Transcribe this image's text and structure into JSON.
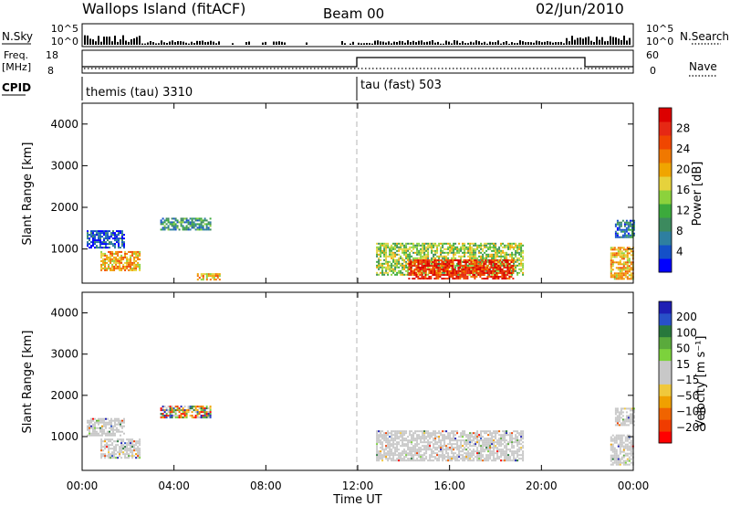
{
  "header": {
    "station": "Wallops Island (fitACF)",
    "beam": "Beam 00",
    "date": "02/Jun/2010"
  },
  "top_panels": {
    "nsky_label": "N.Sky",
    "nsky_ticks": [
      "10^5",
      "10^0"
    ],
    "nsearch_label": "N.Search",
    "nsearch_ticks": [
      "10^5",
      "10^0"
    ],
    "freq_label_line1": "Freq.",
    "freq_label_line2": "[MHz]",
    "freq_ticks": [
      "18",
      "8"
    ],
    "nave_label": "Nave",
    "nave_ticks": [
      "60",
      "0"
    ],
    "cpid_label": "CPID",
    "cpid_segments": [
      {
        "text": "themis (tau) 3310",
        "start_hour": 0
      },
      {
        "text": "tau (fast) 503",
        "start_hour": 12
      }
    ]
  },
  "chart_data": [
    {
      "type": "heatmap",
      "panel": "power",
      "ylabel": "Slant Range [km]",
      "xlabel": "",
      "y_ticks": [
        1000,
        2000,
        3000,
        4000
      ],
      "ylim": [
        180,
        4500
      ],
      "xlim": [
        0,
        24
      ],
      "x_ticks": [
        "00:00",
        "04:00",
        "08:00",
        "12:00",
        "16:00",
        "20:00",
        "00:00"
      ],
      "colorbar": {
        "label": "Power [dB]",
        "ticks": [
          "4",
          "8",
          "12",
          "16",
          "20",
          "24",
          "28"
        ],
        "colors": [
          "#0000ff",
          "#1450c8",
          "#2e7fa0",
          "#3c8a5e",
          "#3caa3c",
          "#8cd23c",
          "#e6d23c",
          "#f0a500",
          "#f07800",
          "#f04600",
          "#e62814",
          "#dc0000"
        ]
      },
      "echo_regions": [
        {
          "t0": 0.2,
          "t1": 1.8,
          "r0": 1050,
          "r1": 1450,
          "level": 4
        },
        {
          "t0": 0.8,
          "t1": 2.5,
          "r0": 500,
          "r1": 950,
          "level": 18
        },
        {
          "t0": 3.4,
          "t1": 5.6,
          "r0": 1450,
          "r1": 1750,
          "level": 8
        },
        {
          "t0": 5.0,
          "t1": 6.0,
          "r0": 280,
          "r1": 420,
          "level": 20
        },
        {
          "t0": 12.8,
          "t1": 19.2,
          "r0": 400,
          "r1": 1150,
          "level": 14
        },
        {
          "t0": 14.2,
          "t1": 18.8,
          "r0": 300,
          "r1": 750,
          "level": 26
        },
        {
          "t0": 23.0,
          "t1": 24.0,
          "r0": 300,
          "r1": 1050,
          "level": 20
        },
        {
          "t0": 23.2,
          "t1": 24.0,
          "r0": 1300,
          "r1": 1700,
          "level": 6
        }
      ]
    },
    {
      "type": "heatmap",
      "panel": "velocity",
      "ylabel": "Slant Range [km]",
      "xlabel": "Time UT",
      "y_ticks": [
        1000,
        2000,
        3000,
        4000
      ],
      "ylim": [
        180,
        4500
      ],
      "xlim": [
        0,
        24
      ],
      "x_ticks": [
        "00:00",
        "04:00",
        "08:00",
        "12:00",
        "16:00",
        "20:00",
        "00:00"
      ],
      "colorbar": {
        "label": "Velocity [m s⁻¹]",
        "ticks": [
          "200",
          "100",
          "50",
          "15",
          "−15",
          "−50",
          "−100",
          "−200"
        ],
        "colors": [
          "#1e1eb4",
          "#2850c8",
          "#28783c",
          "#5aaa3c",
          "#7cd23c",
          "#c8c8c8",
          "#c8c8c8",
          "#f0c83c",
          "#f0a000",
          "#f06400",
          "#f03c00",
          "#ff0000"
        ]
      },
      "echo_regions": [
        {
          "t0": 0.2,
          "t1": 1.8,
          "r0": 1050,
          "r1": 1450,
          "level": 0
        },
        {
          "t0": 0.8,
          "t1": 2.5,
          "r0": 500,
          "r1": 950,
          "level": 0
        },
        {
          "t0": 3.4,
          "t1": 5.6,
          "r0": 1450,
          "r1": 1750,
          "level": 30
        },
        {
          "t0": 12.8,
          "t1": 19.2,
          "r0": 400,
          "r1": 1150,
          "level": 0
        },
        {
          "t0": 23.0,
          "t1": 24.0,
          "r0": 300,
          "r1": 1050,
          "level": 0
        },
        {
          "t0": 23.2,
          "t1": 24.0,
          "r0": 1300,
          "r1": 1700,
          "level": 0
        }
      ]
    }
  ]
}
